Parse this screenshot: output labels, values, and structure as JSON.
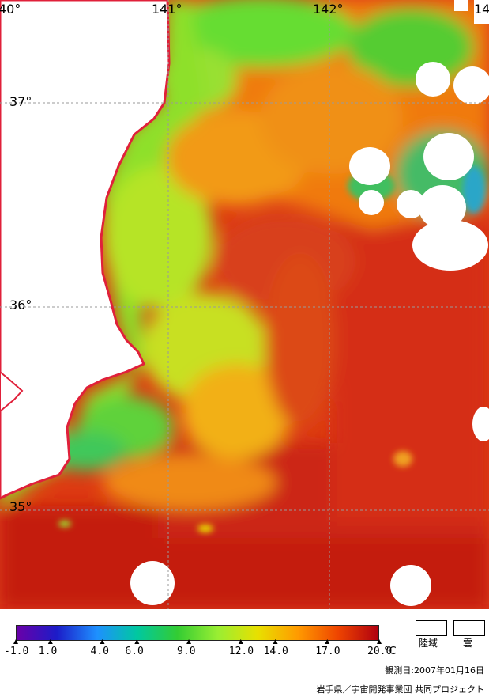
{
  "map": {
    "lon_labels": [
      "40°",
      "141°",
      "142°",
      "14"
    ],
    "lat_labels": [
      "37°",
      "36°",
      "35°"
    ]
  },
  "legend": {
    "ticks": [
      "-1.0",
      "1.0",
      "4.0",
      "6.0",
      "9.0",
      "12.0",
      "14.0",
      "17.0",
      "20.0"
    ],
    "unit": "°C",
    "land_label": "陸域",
    "cloud_label": "雲",
    "colors": [
      "#6a00a8",
      "#1c1cc8",
      "#1e90ff",
      "#00c8a0",
      "#33cc33",
      "#99ee33",
      "#e8e000",
      "#ff9a00",
      "#ee4400",
      "#b00010"
    ]
  },
  "observation_date": "観測日:2007年01月16日",
  "credit": "岩手県／宇宙開発事業団 共同プロジェクト"
}
